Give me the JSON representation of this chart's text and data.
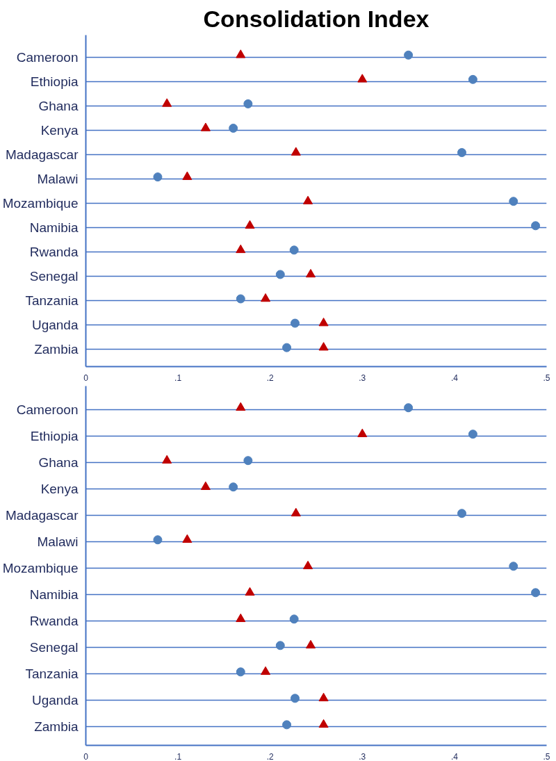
{
  "chart_data": [
    {
      "type": "scatter",
      "title": "Consolidation Index",
      "orientation": "horizontal",
      "categories": [
        "Cameroon",
        "Ethiopia",
        "Ghana",
        "Kenya",
        "Madagascar",
        "Malawi",
        "Mozambique",
        "Namibia",
        "Rwanda",
        "Senegal",
        "Tanzania",
        "Uganda",
        "Zambia"
      ],
      "series": [
        {
          "color": "#4f81bd",
          "marker": "circle",
          "values": [
            0.35,
            0.42,
            0.176,
            0.16,
            0.408,
            0.078,
            0.464,
            0.488,
            0.226,
            0.211,
            0.168,
            0.227,
            0.218
          ]
        },
        {
          "color": "#c00000",
          "marker": "triangle",
          "values": [
            0.168,
            0.3,
            0.088,
            0.13,
            0.228,
            0.11,
            0.241,
            0.178,
            0.168,
            0.244,
            0.195,
            0.258,
            0.258
          ]
        }
      ],
      "xlim": [
        0,
        0.5
      ],
      "xticks": [
        0,
        {
          "value": 0.1,
          "label": ".1"
        },
        {
          "value": 0.2,
          "label": ".2"
        },
        {
          "value": 0.3,
          "label": ".3"
        },
        {
          "value": 0.4,
          "label": ".4"
        },
        {
          "value": 0.5,
          "label": ".5"
        }
      ],
      "grid": "y"
    },
    {
      "type": "scatter",
      "orientation": "horizontal",
      "categories": [
        "Cameroon",
        "Ethiopia",
        "Ghana",
        "Kenya",
        "Madagascar",
        "Malawi",
        "Mozambique",
        "Namibia",
        "Rwanda",
        "Senegal",
        "Tanzania",
        "Uganda",
        "Zambia"
      ],
      "series": [
        {
          "color": "#4f81bd",
          "marker": "circle",
          "values": [
            0.35,
            0.42,
            0.176,
            0.16,
            0.408,
            0.078,
            0.464,
            0.488,
            0.226,
            0.211,
            0.168,
            0.227,
            0.218
          ]
        },
        {
          "color": "#c00000",
          "marker": "triangle",
          "values": [
            0.168,
            0.3,
            0.088,
            0.13,
            0.228,
            0.11,
            0.241,
            0.178,
            0.168,
            0.244,
            0.195,
            0.258,
            0.258
          ]
        }
      ],
      "xlim": [
        0,
        0.5
      ],
      "xticks": [
        0,
        {
          "value": 0.1,
          "label": ".1"
        },
        {
          "value": 0.2,
          "label": ".2"
        },
        {
          "value": 0.3,
          "label": ".3"
        },
        {
          "value": 0.4,
          "label": ".4"
        },
        {
          "value": 0.5,
          "label": ".5"
        }
      ],
      "grid": "y"
    }
  ]
}
